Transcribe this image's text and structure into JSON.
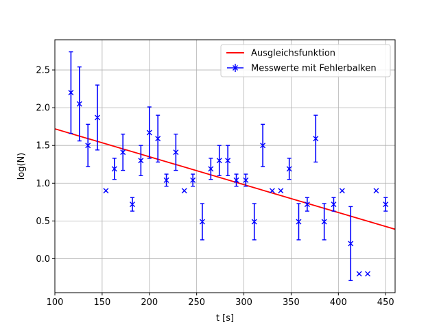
{
  "chart_data": {
    "type": "scatter",
    "title": "",
    "xlabel": "t [s]",
    "ylabel": "log(N)",
    "xlim": [
      100,
      460
    ],
    "ylim": [
      -0.45,
      2.9
    ],
    "xticks": [
      100,
      150,
      200,
      250,
      300,
      350,
      400,
      450
    ],
    "yticks": [
      0.0,
      0.5,
      1.0,
      1.5,
      2.0,
      2.5
    ],
    "xtick_labels": [
      "100",
      "150",
      "200",
      "250",
      "300",
      "350",
      "400",
      "450"
    ],
    "ytick_labels": [
      "0.0",
      "0.5",
      "1.0",
      "1.5",
      "2.0",
      "2.5"
    ],
    "grid": true,
    "legend_position": "upper right",
    "colors": {
      "fit": "#ff0000",
      "data": "#0000ff"
    },
    "series": [
      {
        "name": "Messwerte mit Fehlerbalken",
        "kind": "errorbar",
        "marker": "x",
        "x": [
          117,
          126,
          135,
          145,
          154,
          163,
          172,
          182,
          191,
          200,
          209,
          218,
          228,
          237,
          246,
          256,
          265,
          274,
          283,
          292,
          302,
          311,
          320,
          330,
          339,
          348,
          358,
          367,
          376,
          385,
          395,
          404,
          413,
          422,
          431,
          440,
          450
        ],
        "y": [
          2.2,
          2.05,
          1.5,
          1.87,
          0.9,
          1.19,
          1.41,
          0.72,
          1.3,
          1.67,
          1.59,
          1.04,
          1.41,
          0.9,
          1.04,
          0.49,
          1.19,
          1.3,
          1.3,
          1.04,
          1.04,
          0.49,
          1.5,
          0.9,
          0.9,
          1.19,
          0.49,
          0.72,
          1.59,
          0.49,
          0.72,
          0.9,
          0.2,
          -0.2,
          -0.2,
          0.9,
          0.72
        ],
        "yerr": [
          0.54,
          0.49,
          0.28,
          0.43,
          0.0,
          0.14,
          0.24,
          0.09,
          0.2,
          0.34,
          0.31,
          0.08,
          0.24,
          0.0,
          0.08,
          0.24,
          0.14,
          0.2,
          0.2,
          0.08,
          0.08,
          0.24,
          0.28,
          0.0,
          0.0,
          0.14,
          0.24,
          0.09,
          0.31,
          0.24,
          0.09,
          0.0,
          0.49,
          0.0,
          0.0,
          0.0,
          0.09
        ]
      },
      {
        "name": "Ausgleichsfunktion",
        "kind": "line",
        "x": [
          100,
          460
        ],
        "y": [
          1.72,
          0.39
        ]
      }
    ]
  },
  "legend": {
    "fit_label": "Ausgleichsfunktion",
    "data_label": "Messwerte mit Fehlerbalken"
  }
}
